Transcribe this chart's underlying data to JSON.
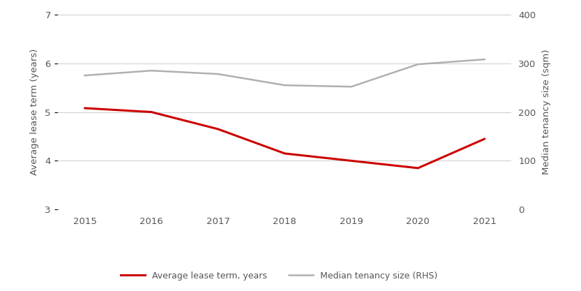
{
  "years": [
    2015,
    2016,
    2017,
    2018,
    2019,
    2020,
    2021
  ],
  "lease_term": [
    5.08,
    5.0,
    4.65,
    4.15,
    4.0,
    3.85,
    4.45
  ],
  "tenancy_size": [
    275,
    285,
    278,
    255,
    252,
    298,
    308
  ],
  "left_ylim": [
    3,
    7
  ],
  "right_ylim": [
    0,
    400
  ],
  "left_yticks": [
    3,
    4,
    5,
    6,
    7
  ],
  "right_yticks": [
    0,
    100,
    200,
    300,
    400
  ],
  "left_ylabel": "Average lease term (years)",
  "right_ylabel": "Median tenancy size (sqm)",
  "lease_color": "#cc0000",
  "tenancy_color": "#b0b0b0",
  "legend_labels": [
    "Average lease term, years",
    "Median tenancy size (RHS)"
  ],
  "background_color": "#ffffff",
  "grid_color": "#cccccc",
  "figsize": [
    8.33,
    4.17
  ],
  "dpi": 100,
  "label_fontsize": 9.5,
  "tick_fontsize": 9.5,
  "tick_color": "#555555",
  "label_color": "#555555"
}
